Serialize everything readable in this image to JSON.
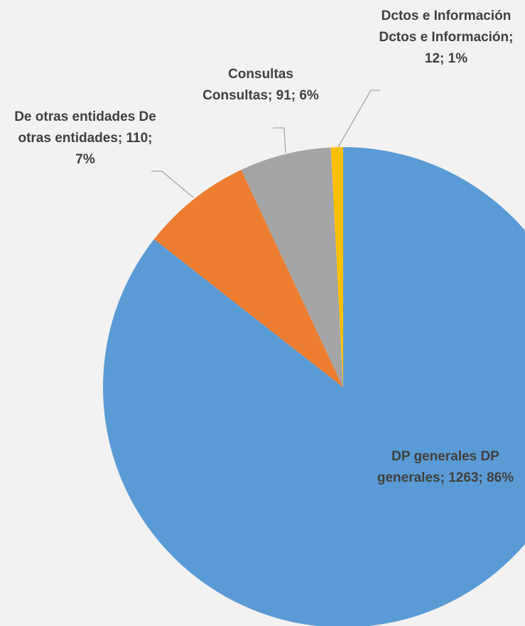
{
  "chart_data": {
    "type": "pie",
    "values": [
      1263,
      110,
      91,
      12
    ],
    "value_labels": [
      "DP generales DP generales; 1263; 86%",
      "De otras entidades De otras entidades; 110; 7%",
      "Consultas Consultas; 91; 6%",
      "Dctos e Información Dctos e Información; 12; 1%"
    ],
    "colors": [
      "#5b9bd5",
      "#ed7d31",
      "#a5a5a5",
      "#ffc000"
    ]
  }
}
